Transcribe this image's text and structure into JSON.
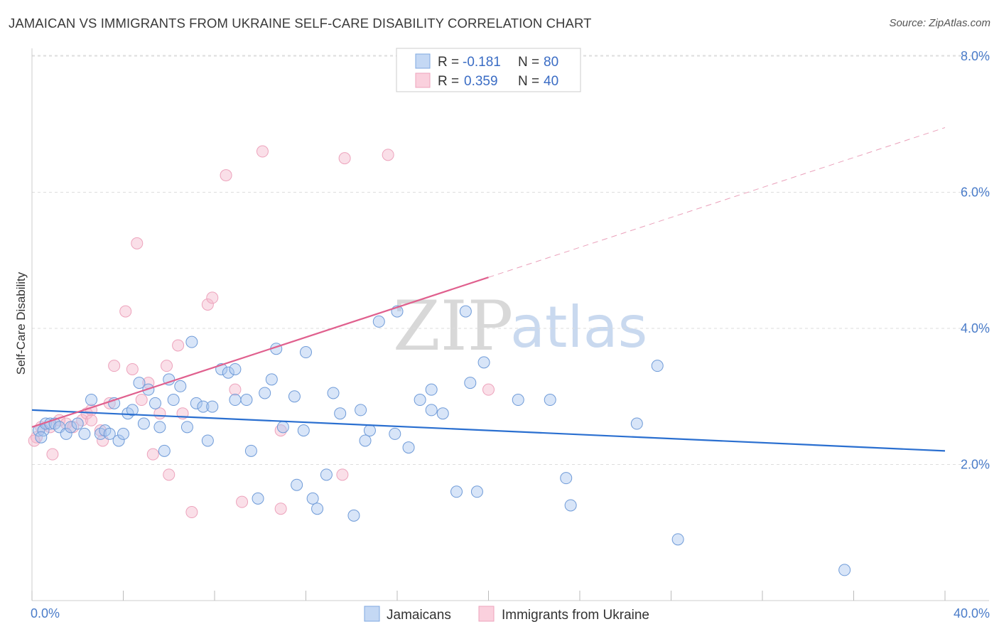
{
  "header": {
    "title": "JAMAICAN VS IMMIGRANTS FROM UKRAINE SELF-CARE DISABILITY CORRELATION CHART",
    "source": "Source: ZipAtlas.com"
  },
  "watermark": {
    "zip": "ZIP",
    "atlas": "atlas"
  },
  "legend": {
    "rows": [
      {
        "r_label": "R = ",
        "r_value": "-0.181",
        "n_label": "N = ",
        "n_value": "80",
        "color": "#a9c6f0"
      },
      {
        "r_label": "R = ",
        "r_value": "0.359",
        "n_label": "N = ",
        "n_value": "40",
        "color": "#f5b8cc"
      }
    ]
  },
  "bottom_legend": {
    "series1": "Jamaicans",
    "series2": "Immigrants from Ukraine"
  },
  "chart_data": {
    "type": "scatter",
    "title": "JAMAICAN VS IMMIGRANTS FROM UKRAINE SELF-CARE DISABILITY CORRELATION CHART",
    "xlabel": "",
    "ylabel": "Self-Care Disability",
    "xlim": [
      0,
      40
    ],
    "ylim": [
      0,
      8.4
    ],
    "x_tick_labels": [
      "0.0%",
      "40.0%"
    ],
    "y_tick_labels": [
      "2.0%",
      "4.0%",
      "6.0%",
      "8.0%"
    ],
    "y_ticks": [
      2,
      4,
      6,
      8
    ],
    "grid": true,
    "legend_position": "top-center",
    "colors": {
      "jamaicans": "#6fa0e6",
      "jamaicans_line": "#2a6fd0",
      "ukraine": "#f09ab8",
      "ukraine_line": "#e0608e"
    },
    "series": [
      {
        "name": "Jamaicans",
        "trend": {
          "x": [
            0,
            40
          ],
          "y": [
            2.8,
            2.2
          ]
        },
        "points": [
          [
            0.3,
            2.5
          ],
          [
            0.5,
            2.5
          ],
          [
            0.4,
            2.4
          ],
          [
            0.6,
            2.6
          ],
          [
            0.8,
            2.6
          ],
          [
            1.0,
            2.6
          ],
          [
            1.2,
            2.55
          ],
          [
            1.5,
            2.45
          ],
          [
            1.7,
            2.55
          ],
          [
            2.0,
            2.6
          ],
          [
            2.3,
            2.45
          ],
          [
            2.6,
            2.95
          ],
          [
            3.0,
            2.45
          ],
          [
            3.2,
            2.5
          ],
          [
            3.4,
            2.45
          ],
          [
            3.6,
            2.9
          ],
          [
            3.8,
            2.35
          ],
          [
            4.0,
            2.45
          ],
          [
            4.2,
            2.75
          ],
          [
            4.4,
            2.8
          ],
          [
            4.7,
            3.2
          ],
          [
            4.9,
            2.6
          ],
          [
            5.1,
            3.1
          ],
          [
            5.4,
            2.9
          ],
          [
            5.6,
            2.55
          ],
          [
            5.8,
            2.2
          ],
          [
            6.0,
            3.25
          ],
          [
            6.2,
            2.95
          ],
          [
            6.5,
            3.15
          ],
          [
            6.8,
            2.55
          ],
          [
            7.0,
            3.8
          ],
          [
            7.2,
            2.9
          ],
          [
            7.5,
            2.85
          ],
          [
            7.7,
            2.35
          ],
          [
            7.9,
            2.85
          ],
          [
            8.3,
            3.4
          ],
          [
            8.6,
            3.35
          ],
          [
            8.9,
            3.4
          ],
          [
            8.9,
            2.95
          ],
          [
            9.4,
            2.95
          ],
          [
            9.6,
            2.2
          ],
          [
            9.9,
            1.5
          ],
          [
            10.2,
            3.05
          ],
          [
            10.5,
            3.25
          ],
          [
            10.7,
            3.7
          ],
          [
            11.0,
            2.55
          ],
          [
            11.5,
            3.0
          ],
          [
            11.6,
            1.7
          ],
          [
            11.9,
            2.5
          ],
          [
            12.0,
            3.65
          ],
          [
            12.3,
            1.5
          ],
          [
            12.5,
            1.35
          ],
          [
            12.9,
            1.85
          ],
          [
            13.2,
            3.05
          ],
          [
            13.5,
            2.75
          ],
          [
            14.1,
            1.25
          ],
          [
            14.4,
            2.8
          ],
          [
            14.6,
            2.35
          ],
          [
            14.8,
            2.5
          ],
          [
            15.2,
            4.1
          ],
          [
            15.9,
            2.45
          ],
          [
            16.0,
            4.25
          ],
          [
            16.5,
            2.25
          ],
          [
            17.0,
            2.95
          ],
          [
            17.5,
            3.1
          ],
          [
            17.5,
            2.8
          ],
          [
            18.0,
            2.75
          ],
          [
            18.6,
            1.6
          ],
          [
            19.0,
            4.25
          ],
          [
            19.2,
            3.2
          ],
          [
            19.5,
            1.6
          ],
          [
            19.8,
            3.5
          ],
          [
            21.3,
            2.95
          ],
          [
            22.7,
            2.95
          ],
          [
            23.4,
            1.8
          ],
          [
            23.6,
            1.4
          ],
          [
            26.5,
            2.6
          ],
          [
            27.4,
            3.45
          ],
          [
            28.3,
            0.9
          ],
          [
            35.6,
            0.45
          ]
        ]
      },
      {
        "name": "Immigrants from Ukraine",
        "trend": {
          "x": [
            0,
            20
          ],
          "y": [
            2.55,
            4.75
          ]
        },
        "trend_extended": {
          "x": [
            20,
            40
          ],
          "y": [
            4.75,
            6.95
          ]
        },
        "points": [
          [
            0.2,
            2.4
          ],
          [
            0.4,
            2.55
          ],
          [
            0.8,
            2.55
          ],
          [
            0.9,
            2.15
          ],
          [
            1.2,
            2.65
          ],
          [
            1.5,
            2.6
          ],
          [
            1.8,
            2.55
          ],
          [
            2.2,
            2.65
          ],
          [
            2.4,
            2.75
          ],
          [
            2.6,
            2.8
          ],
          [
            2.6,
            2.65
          ],
          [
            3.0,
            2.5
          ],
          [
            3.1,
            2.35
          ],
          [
            3.4,
            2.9
          ],
          [
            3.6,
            3.45
          ],
          [
            4.1,
            4.25
          ],
          [
            4.4,
            3.4
          ],
          [
            4.6,
            5.25
          ],
          [
            4.8,
            2.95
          ],
          [
            5.1,
            3.2
          ],
          [
            5.3,
            2.15
          ],
          [
            5.6,
            2.75
          ],
          [
            5.9,
            3.45
          ],
          [
            6.0,
            1.85
          ],
          [
            6.4,
            3.75
          ],
          [
            6.6,
            2.75
          ],
          [
            7.0,
            1.3
          ],
          [
            7.7,
            4.35
          ],
          [
            7.9,
            4.45
          ],
          [
            8.5,
            6.25
          ],
          [
            8.9,
            3.1
          ],
          [
            9.2,
            1.45
          ],
          [
            10.1,
            6.6
          ],
          [
            10.9,
            1.35
          ],
          [
            10.9,
            2.5
          ],
          [
            13.6,
            1.85
          ],
          [
            13.7,
            6.5
          ],
          [
            15.6,
            6.55
          ],
          [
            20.0,
            3.1
          ],
          [
            0.1,
            2.35
          ]
        ]
      }
    ]
  }
}
